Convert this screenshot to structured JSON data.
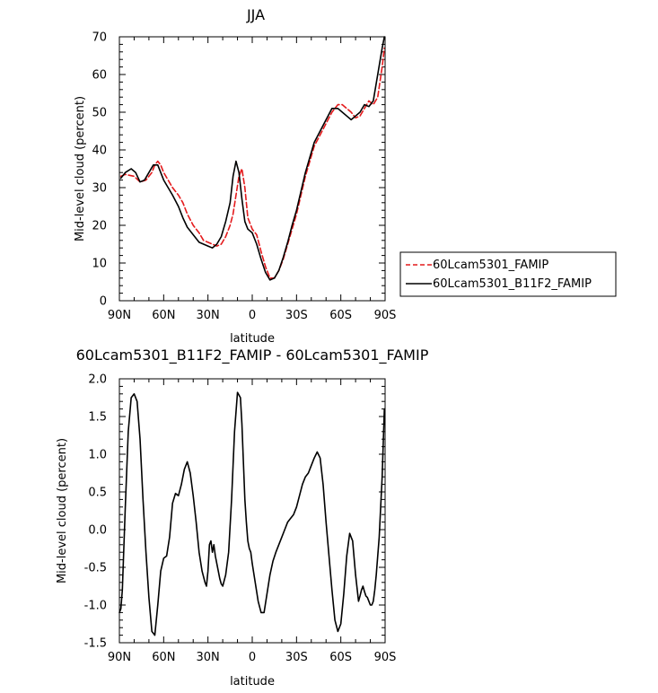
{
  "chart_data": [
    {
      "type": "line",
      "title": "JJA",
      "xlabel": "latitude",
      "ylabel": "Mid-level cloud (percent)",
      "xlim": [
        90,
        -90
      ],
      "ylim": [
        0,
        70
      ],
      "x_ticks": [
        90,
        60,
        30,
        0,
        -30,
        -60,
        -90
      ],
      "x_tick_labels": [
        "90N",
        "60N",
        "30N",
        "0",
        "30S",
        "60S",
        "90S"
      ],
      "y_ticks": [
        0,
        10,
        20,
        30,
        40,
        50,
        60,
        70
      ],
      "y_tick_labels": [
        "0",
        "10",
        "20",
        "30",
        "40",
        "50",
        "60",
        "70"
      ],
      "legend_position": "outside-right",
      "series": [
        {
          "name": "60Lcam5301_FAMIP",
          "color": "#e41a1c",
          "style": "dashed",
          "x": [
            89,
            86,
            80,
            76,
            72,
            68,
            66,
            64,
            62,
            60,
            57,
            54,
            50,
            47,
            44,
            40,
            36,
            33,
            30,
            27,
            24,
            21,
            18,
            15,
            13,
            11,
            9,
            7,
            5,
            3,
            0,
            -3,
            -6,
            -9,
            -12,
            -15,
            -18,
            -21,
            -24,
            -27,
            -30,
            -33,
            -36,
            -39,
            -42,
            -46,
            -50,
            -54,
            -58,
            -61,
            -64,
            -67,
            -70,
            -73,
            -76,
            -79,
            -82,
            -85,
            -88,
            -89.5
          ],
          "y": [
            33,
            33.5,
            33,
            31.5,
            32,
            34,
            36,
            37,
            36,
            34,
            32,
            30,
            28,
            26,
            23,
            20,
            18,
            16,
            15.5,
            15,
            14.5,
            15,
            17,
            20,
            23,
            28,
            33,
            35,
            30,
            22,
            19,
            17.5,
            13,
            9,
            6,
            6,
            8,
            11,
            15,
            19,
            23,
            28,
            33,
            37,
            41,
            44,
            47,
            50,
            52,
            52,
            51,
            50,
            48.5,
            49,
            51,
            53,
            52,
            54,
            62,
            67
          ]
        },
        {
          "name": "60Lcam5301_B11F2_FAMIP",
          "color": "#000000",
          "style": "solid",
          "x": [
            89,
            86,
            82,
            79,
            76,
            73,
            70,
            67,
            64,
            62,
            60,
            57,
            54,
            50,
            47,
            44,
            40,
            36,
            33,
            30,
            27,
            24,
            21,
            18,
            15,
            13,
            11,
            9,
            7,
            5,
            3,
            0,
            -3,
            -6,
            -9,
            -12,
            -15,
            -18,
            -21,
            -24,
            -27,
            -30,
            -33,
            -36,
            -39,
            -42,
            -46,
            -50,
            -54,
            -58,
            -61,
            -64,
            -67,
            -70,
            -73,
            -76,
            -79,
            -82,
            -85,
            -88,
            -89.5
          ],
          "y": [
            32.5,
            34,
            35,
            34,
            31.5,
            32,
            34,
            36,
            36,
            34,
            32,
            30,
            28,
            25,
            22,
            19.5,
            17.5,
            15.5,
            15,
            14.5,
            14,
            15,
            17,
            21,
            26,
            33,
            37,
            34,
            27,
            21,
            19,
            18,
            15,
            11,
            7.5,
            5.5,
            6,
            8,
            11.5,
            15.5,
            20,
            24,
            29,
            34,
            38,
            42,
            45,
            48,
            51,
            51,
            50,
            49,
            48,
            49,
            50,
            52,
            51.5,
            53,
            60,
            67,
            70
          ]
        }
      ]
    },
    {
      "type": "line",
      "title": "60Lcam5301_B11F2_FAMIP - 60Lcam5301_FAMIP",
      "xlabel": "latitude",
      "ylabel": "Mid-level cloud (percent)",
      "xlim": [
        90,
        -90
      ],
      "ylim": [
        -1.5,
        2.0
      ],
      "x_ticks": [
        90,
        60,
        30,
        0,
        -30,
        -60,
        -90
      ],
      "x_tick_labels": [
        "90N",
        "60N",
        "30N",
        "0",
        "30S",
        "60S",
        "90S"
      ],
      "y_ticks": [
        -1.5,
        -1.0,
        -0.5,
        0.0,
        0.5,
        1.0,
        1.5,
        2.0
      ],
      "y_tick_labels": [
        "-1.5",
        "-1.0",
        "-0.5",
        "0.0",
        "0.5",
        "1.0",
        "1.5",
        "2.0"
      ],
      "series": [
        {
          "color": "#000000",
          "style": "solid",
          "x": [
            90,
            89,
            88,
            86,
            84,
            82,
            80,
            78,
            76,
            74,
            72,
            70,
            68,
            66,
            64,
            62,
            60,
            58,
            56,
            54,
            52,
            50,
            48,
            46,
            44,
            42,
            40,
            38,
            36,
            34,
            32,
            31,
            30,
            29,
            28,
            27,
            26,
            25,
            24,
            23,
            22,
            21,
            20,
            18,
            16,
            14,
            12,
            10,
            8,
            7,
            6,
            5,
            4,
            3,
            2,
            1,
            0,
            -2,
            -4,
            -6,
            -8,
            -10,
            -12,
            -14,
            -16,
            -18,
            -20,
            -22,
            -24,
            -26,
            -28,
            -30,
            -32,
            -34,
            -36,
            -38,
            -40,
            -42,
            -44,
            -46,
            -48,
            -50,
            -52,
            -54,
            -56,
            -58,
            -60,
            -62,
            -64,
            -66,
            -68,
            -70,
            -72,
            -73,
            -74,
            -75,
            -76,
            -77,
            -78,
            -79,
            -80,
            -81,
            -82,
            -83,
            -84,
            -86,
            -88,
            -89.5
          ],
          "y": [
            -1.1,
            -1.05,
            -0.8,
            0.3,
            1.3,
            1.75,
            1.8,
            1.7,
            1.2,
            0.4,
            -0.3,
            -0.9,
            -1.35,
            -1.4,
            -1.0,
            -0.55,
            -0.38,
            -0.35,
            -0.1,
            0.35,
            0.48,
            0.45,
            0.6,
            0.8,
            0.9,
            0.75,
            0.45,
            0.1,
            -0.3,
            -0.55,
            -0.7,
            -0.75,
            -0.55,
            -0.2,
            -0.15,
            -0.3,
            -0.2,
            -0.35,
            -0.45,
            -0.55,
            -0.65,
            -0.72,
            -0.75,
            -0.6,
            -0.3,
            0.4,
            1.3,
            1.82,
            1.75,
            1.4,
            0.9,
            0.4,
            0.1,
            -0.15,
            -0.25,
            -0.3,
            -0.45,
            -0.7,
            -0.95,
            -1.1,
            -1.1,
            -0.85,
            -0.6,
            -0.42,
            -0.3,
            -0.2,
            -0.1,
            0.0,
            0.1,
            0.15,
            0.2,
            0.3,
            0.45,
            0.6,
            0.7,
            0.75,
            0.85,
            0.95,
            1.03,
            0.95,
            0.6,
            0.1,
            -0.35,
            -0.8,
            -1.2,
            -1.35,
            -1.25,
            -0.85,
            -0.35,
            -0.05,
            -0.15,
            -0.6,
            -0.95,
            -0.88,
            -0.8,
            -0.75,
            -0.82,
            -0.88,
            -0.9,
            -0.95,
            -1.0,
            -1.0,
            -0.95,
            -0.8,
            -0.6,
            -0.1,
            0.7,
            1.6
          ]
        }
      ]
    }
  ]
}
